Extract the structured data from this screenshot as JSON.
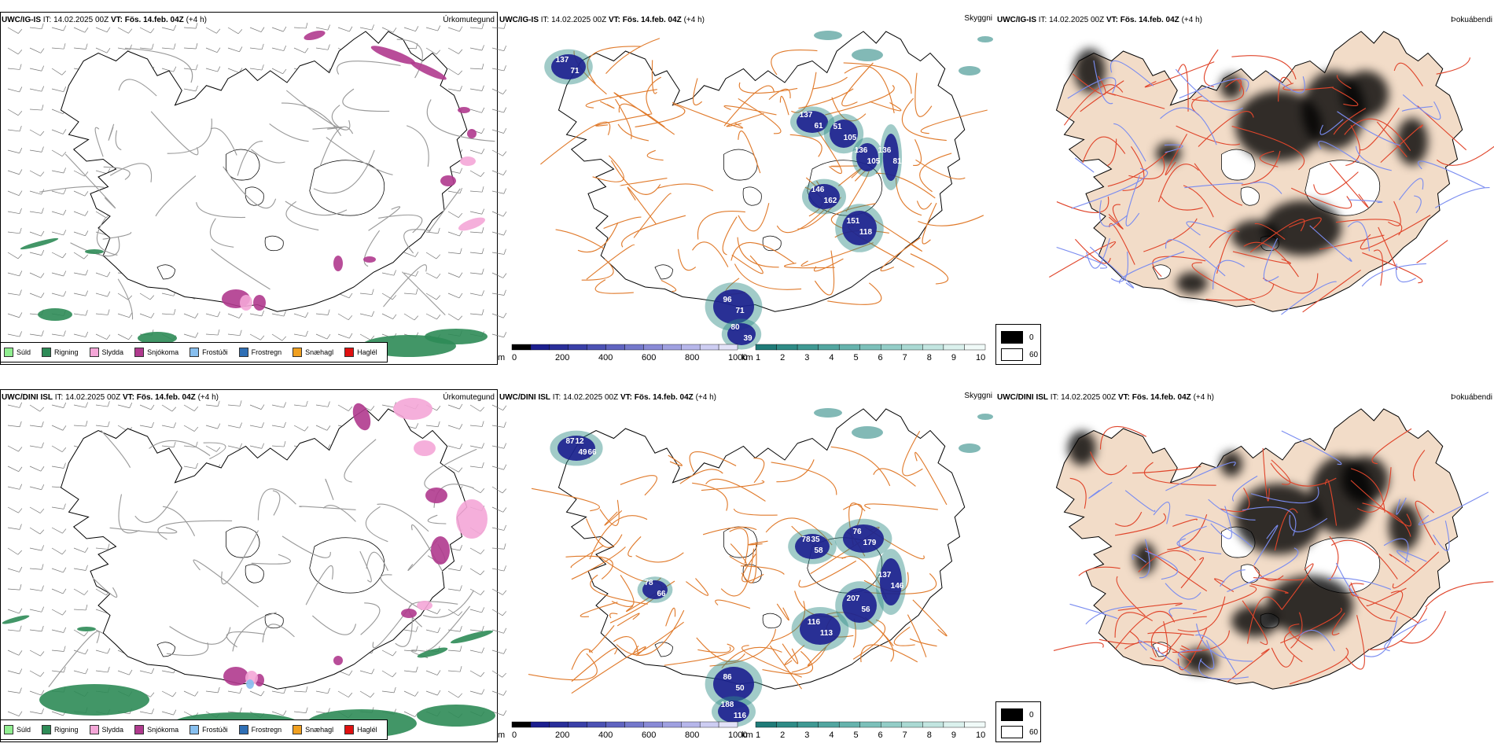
{
  "rows": [
    {
      "model": "UWC/IG-IS",
      "it_label": "IT:",
      "it_value": "14.02.2025 00Z",
      "vt_label": "VT:",
      "vt_value": "Fös. 14.feb. 04Z",
      "lead": "(+4 h)",
      "titles": [
        "Úrkomutegund",
        "Skyggni",
        "Þokuábendi"
      ],
      "visibility_labels": [
        "137",
        "71",
        "137",
        "61",
        "51",
        "105",
        "136",
        "105",
        "146",
        "162",
        "151",
        "118",
        "136",
        "81",
        "96",
        "71",
        "80",
        "39"
      ]
    },
    {
      "model": "UWC/DINI ISL",
      "it_label": "IT:",
      "it_value": "14.02.2025 00Z",
      "vt_label": "VT:",
      "vt_value": "Fös. 14.feb. 04Z",
      "lead": "(+4 h)",
      "titles": [
        "Úrkomutegund",
        "Skyggni",
        "Þokuábendi"
      ],
      "visibility_labels": [
        "87",
        "49",
        "78",
        "58",
        "76",
        "179",
        "207",
        "56",
        "116",
        "113",
        "137",
        "146",
        "86",
        "50",
        "188",
        "116",
        "78",
        "66",
        "12",
        "66",
        "35"
      ]
    }
  ],
  "precip_legend": [
    {
      "label": "Súld",
      "color": "#90ee90"
    },
    {
      "label": "Rigning",
      "color": "#2e8b57"
    },
    {
      "label": "Slydda",
      "color": "#f4a6d7"
    },
    {
      "label": "Snjókoma",
      "color": "#b03a8e"
    },
    {
      "label": "Frostúði",
      "color": "#87bfef"
    },
    {
      "label": "Frostregn",
      "color": "#2f6fb5"
    },
    {
      "label": "Snæhagl",
      "color": "#f0a020"
    },
    {
      "label": "Haglél",
      "color": "#e01010"
    }
  ],
  "colorbar_m": {
    "unit": "m",
    "ticks": [
      "0",
      "200",
      "400",
      "600",
      "800",
      "1000"
    ]
  },
  "colorbar_km": {
    "unit": "km",
    "ticks": [
      "1",
      "2",
      "3",
      "4",
      "5",
      "6",
      "7",
      "8",
      "9",
      "10"
    ]
  },
  "fog_legend": [
    {
      "label": "0",
      "color": "#000000"
    },
    {
      "label": "60",
      "color": "#ffffff"
    }
  ],
  "colors": {
    "land_fog": "#f2dcc8",
    "roads": "#e07a2b",
    "roads_fog": "#e0452b",
    "rivers": "#7a8cf0",
    "vis_dark": "#1c1f8f",
    "vis_teal": "#2e8b86"
  }
}
